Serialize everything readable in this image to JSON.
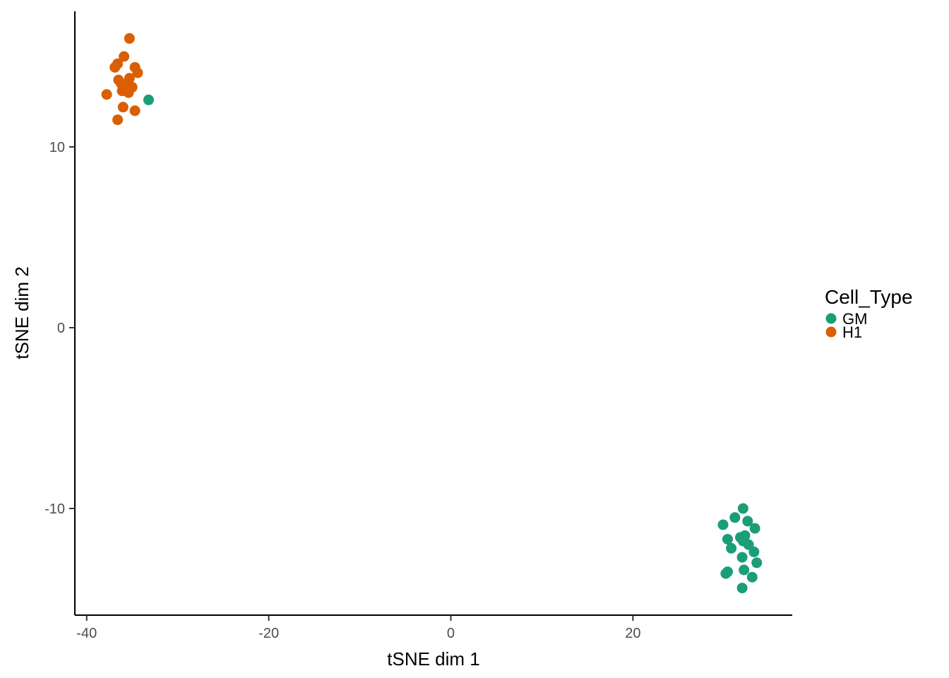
{
  "chart_data": {
    "type": "scatter",
    "xlabel": "tSNE dim 1",
    "ylabel": "tSNE dim 2",
    "xlim": [
      -41.3,
      37.5
    ],
    "ylim": [
      -15.9,
      17.5
    ],
    "xticks": [
      -40,
      -20,
      0,
      20
    ],
    "yticks": [
      10,
      0,
      -10
    ],
    "grid": false,
    "legend": {
      "title": "Cell_Type",
      "position": "right"
    },
    "series": [
      {
        "name": "GM",
        "color": "#1b9e77",
        "points": [
          [
            -33.2,
            12.6
          ],
          [
            32.1,
            -10.0
          ],
          [
            31.2,
            -10.5
          ],
          [
            32.6,
            -10.7
          ],
          [
            29.9,
            -10.9
          ],
          [
            33.4,
            -11.1
          ],
          [
            30.4,
            -11.7
          ],
          [
            31.8,
            -11.6
          ],
          [
            32.3,
            -11.5
          ],
          [
            32.1,
            -11.8
          ],
          [
            32.7,
            -12.0
          ],
          [
            30.8,
            -12.2
          ],
          [
            33.3,
            -12.4
          ],
          [
            32.0,
            -12.7
          ],
          [
            33.6,
            -13.0
          ],
          [
            30.4,
            -13.5
          ],
          [
            30.2,
            -13.6
          ],
          [
            32.2,
            -13.4
          ],
          [
            33.1,
            -13.8
          ],
          [
            32.0,
            -14.4
          ]
        ]
      },
      {
        "name": "H1",
        "color": "#d95f02",
        "points": [
          [
            -35.3,
            16.0
          ],
          [
            -35.9,
            15.0
          ],
          [
            -36.6,
            14.6
          ],
          [
            -36.9,
            14.4
          ],
          [
            -34.7,
            14.4
          ],
          [
            -34.4,
            14.1
          ],
          [
            -35.3,
            13.8
          ],
          [
            -36.5,
            13.7
          ],
          [
            -36.2,
            13.5
          ],
          [
            -35.4,
            13.4
          ],
          [
            -35.0,
            13.3
          ],
          [
            -35.5,
            13.2
          ],
          [
            -36.1,
            13.1
          ],
          [
            -35.4,
            13.0
          ],
          [
            -37.8,
            12.9
          ],
          [
            -36.0,
            12.2
          ],
          [
            -34.7,
            12.0
          ],
          [
            -36.6,
            11.5
          ]
        ]
      }
    ]
  }
}
